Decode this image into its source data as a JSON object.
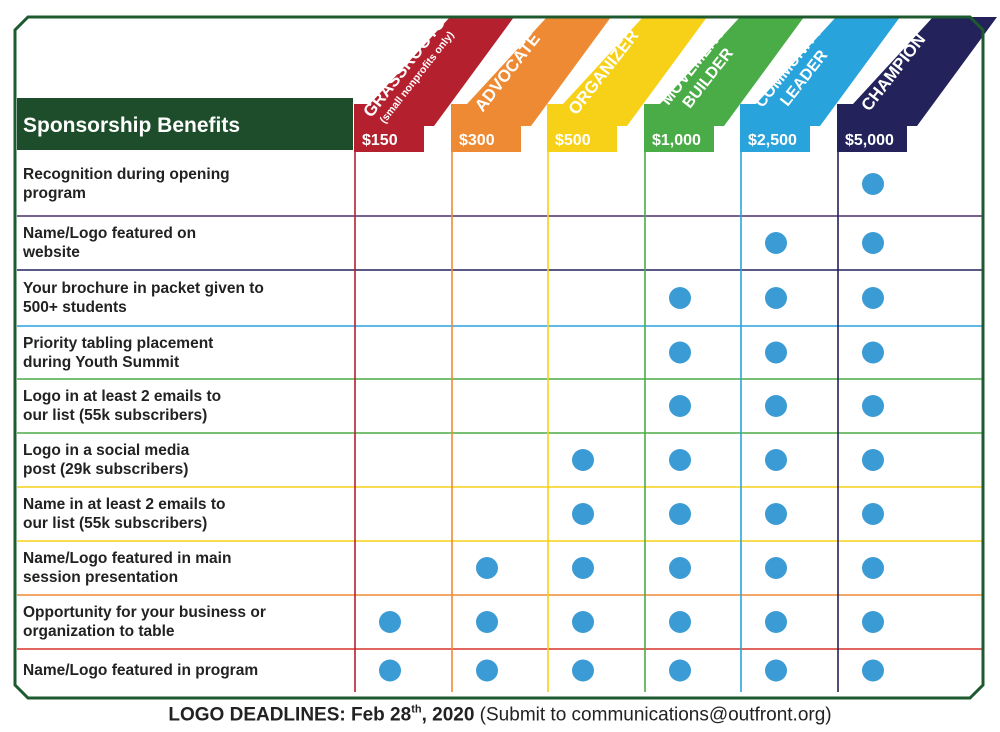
{
  "header": {
    "title": "Sponsorship Benefits"
  },
  "colors": {
    "frame": "#1d5a30",
    "header_bg": "#1e4d2b",
    "dot": "#3b9bd4",
    "tiers": [
      "#b5202e",
      "#ee8a33",
      "#f7d117",
      "#4aac47",
      "#29a3db",
      "#23225a"
    ],
    "row_lines": [
      "#4a2d6b",
      "#23225a",
      "#29a3db",
      "#4aac47",
      "#4aac47",
      "#f7d117",
      "#f7d117",
      "#ee8a33",
      "#d9342b"
    ]
  },
  "tiers": [
    {
      "label": "GRASSROOTS",
      "sublabel": "(small nonprofits only)",
      "price": "$150"
    },
    {
      "label": "ADVOCATE",
      "price": "$300"
    },
    {
      "label": "ORGANIZER",
      "price": "$500"
    },
    {
      "label_line1": "MOVEMENT",
      "label_line2": "BUILDER",
      "price": "$1,000"
    },
    {
      "label_line1": "COMMUNITY",
      "label_line2": "LEADER",
      "price": "$2,500"
    },
    {
      "label": "CHAMPION",
      "price": "$5,000"
    }
  ],
  "benefits": [
    {
      "label": "Recognition during opening\nprogram",
      "included": [
        false,
        false,
        false,
        false,
        false,
        true
      ]
    },
    {
      "label": "Name/Logo featured on\nwebsite",
      "included": [
        false,
        false,
        false,
        false,
        true,
        true
      ]
    },
    {
      "label": "Your brochure in packet given to\n500+ students",
      "included": [
        false,
        false,
        false,
        true,
        true,
        true
      ]
    },
    {
      "label": "Priority tabling placement\nduring Youth Summit",
      "included": [
        false,
        false,
        false,
        true,
        true,
        true
      ]
    },
    {
      "label": "Logo in at least 2 emails to\nour list (55k subscribers)",
      "included": [
        false,
        false,
        false,
        true,
        true,
        true
      ]
    },
    {
      "label": "Logo in a social media\npost (29k subscribers)",
      "included": [
        false,
        false,
        true,
        true,
        true,
        true
      ]
    },
    {
      "label": "Name in at least 2 emails to\nour list (55k subscribers)",
      "included": [
        false,
        false,
        true,
        true,
        true,
        true
      ]
    },
    {
      "label": "Name/Logo featured in main\nsession presentation",
      "included": [
        false,
        true,
        true,
        true,
        true,
        true
      ]
    },
    {
      "label": "Opportunity for your business or\norganization to table",
      "included": [
        true,
        true,
        true,
        true,
        true,
        true
      ]
    },
    {
      "label": "Name/Logo featured in program",
      "included": [
        true,
        true,
        true,
        true,
        true,
        true
      ]
    }
  ],
  "footer": {
    "bold_prefix": "LOGO DEADLINES: Feb 28",
    "superscript": "th",
    "bold_suffix": ", 2020",
    "regular": " (Submit to communications@outfront.org)"
  }
}
